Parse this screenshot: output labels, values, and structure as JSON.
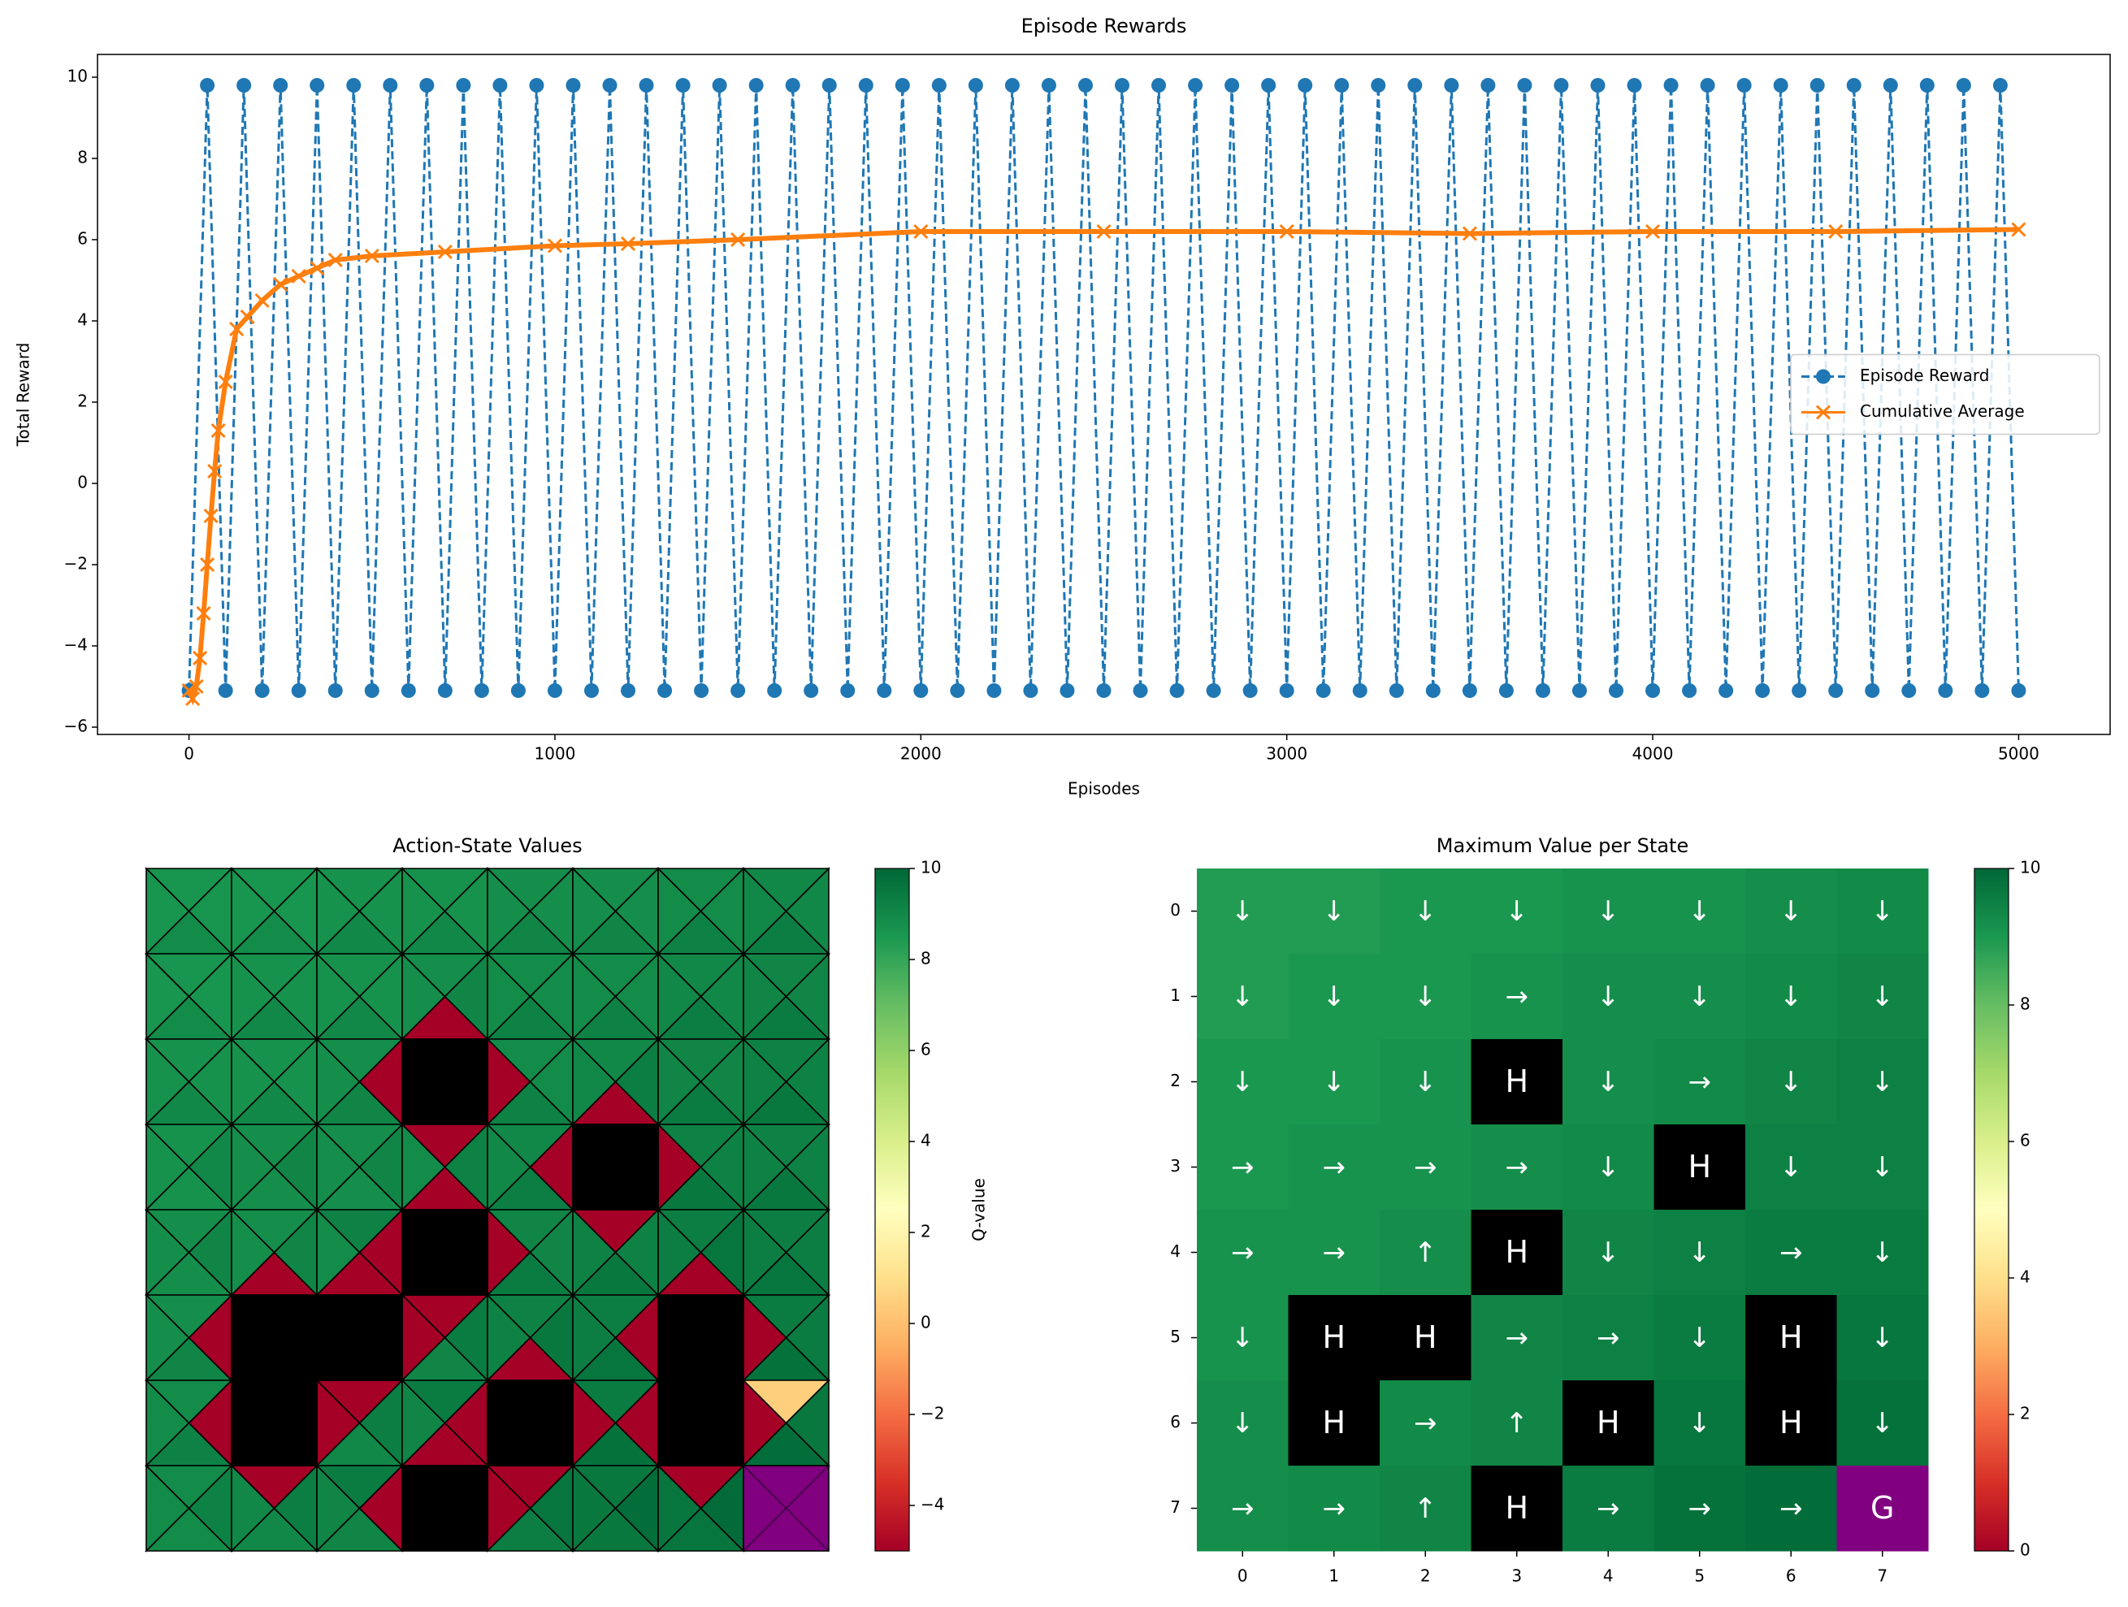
{
  "chart_data": [
    {
      "type": "line",
      "title": "Episode Rewards",
      "xlabel": "Episodes",
      "ylabel": "Total Reward",
      "xlim": [
        -250,
        5250
      ],
      "ylim": [
        -6.18,
        10.56
      ],
      "xticks": [
        0,
        1000,
        2000,
        3000,
        4000,
        5000
      ],
      "yticks": [
        {
          "value": -6,
          "label": "−6"
        },
        {
          "value": -4,
          "label": "−4"
        },
        {
          "value": -2,
          "label": "−2"
        },
        0,
        2,
        4,
        6,
        8,
        10
      ],
      "legend": "center right",
      "series": [
        {
          "name": "Episode Reward",
          "color": "#1f77b4",
          "linestyle": "dashed",
          "marker": "o",
          "x": [
            0,
            50,
            100,
            150,
            200,
            250,
            300,
            350,
            400,
            450,
            500,
            550,
            600,
            650,
            700,
            750,
            800,
            850,
            900,
            950,
            1000,
            1050,
            1100,
            1150,
            1200,
            1250,
            1300,
            1350,
            1400,
            1450,
            1500,
            1550,
            1600,
            1650,
            1700,
            1750,
            1800,
            1850,
            1900,
            1950,
            2000,
            2050,
            2100,
            2150,
            2200,
            2250,
            2300,
            2350,
            2400,
            2450,
            2500,
            2550,
            2600,
            2650,
            2700,
            2750,
            2800,
            2850,
            2900,
            2950,
            3000,
            3050,
            3100,
            3150,
            3200,
            3250,
            3300,
            3350,
            3400,
            3450,
            3500,
            3550,
            3600,
            3650,
            3700,
            3750,
            3800,
            3850,
            3900,
            3950,
            4000,
            4050,
            4100,
            4150,
            4200,
            4250,
            4300,
            4350,
            4400,
            4450,
            4500,
            4550,
            4600,
            4650,
            4700,
            4750,
            4800,
            4850,
            4900,
            4950,
            5000
          ],
          "values": [
            -5.1,
            9.8,
            -5.1,
            9.8,
            -5.1,
            9.8,
            -5.1,
            9.8,
            -5.1,
            9.8,
            -5.1,
            9.8,
            -5.1,
            9.8,
            -5.1,
            9.8,
            -5.1,
            9.8,
            -5.1,
            9.8,
            -5.1,
            9.8,
            -5.1,
            9.8,
            -5.1,
            9.8,
            -5.1,
            9.8,
            -5.1,
            9.8,
            -5.1,
            9.8,
            -5.1,
            9.8,
            -5.1,
            9.8,
            -5.1,
            9.8,
            -5.1,
            9.8,
            -5.1,
            9.8,
            -5.1,
            9.8,
            -5.1,
            9.8,
            -5.1,
            9.8,
            -5.1,
            9.8,
            -5.1,
            9.8,
            -5.1,
            9.8,
            -5.1,
            9.8,
            -5.1,
            9.8,
            -5.1,
            9.8,
            -5.1,
            9.8,
            -5.1,
            9.8,
            -5.1,
            9.8,
            -5.1,
            9.8,
            -5.1,
            9.8,
            -5.1,
            9.8,
            -5.1,
            9.8,
            -5.1,
            9.8,
            -5.1,
            9.8,
            -5.1,
            9.8,
            -5.1,
            9.8,
            -5.1,
            9.8,
            -5.1,
            9.8,
            -5.1,
            9.8,
            -5.1,
            9.8,
            -5.1,
            9.8,
            -5.1,
            9.8,
            -5.1,
            9.8,
            -5.1,
            9.8,
            -5.1,
            9.8,
            -5.1
          ]
        },
        {
          "name": "Cumulative Average",
          "color": "#ff7f0e",
          "linestyle": "solid",
          "marker": "x",
          "x": [
            0,
            10,
            20,
            30,
            40,
            50,
            60,
            70,
            80,
            100,
            130,
            160,
            200,
            250,
            300,
            350,
            400,
            500,
            700,
            1000,
            1200,
            1500,
            2000,
            2500,
            3000,
            3500,
            4000,
            4500,
            5000
          ],
          "values": [
            -5.1,
            -5.3,
            -5.0,
            -4.3,
            -3.2,
            -2.0,
            -0.8,
            0.3,
            1.3,
            2.5,
            3.8,
            4.1,
            4.5,
            4.9,
            5.1,
            5.3,
            5.5,
            5.6,
            5.7,
            5.85,
            5.9,
            6.0,
            6.2,
            6.2,
            6.2,
            6.15,
            6.2,
            6.2,
            6.25
          ]
        }
      ]
    },
    {
      "type": "triangle_heatmap",
      "title": "Action-State Values",
      "colorbar_label": "Q-value",
      "colormap": "RdYlGn",
      "clim": [
        -5,
        10
      ],
      "cticks": [
        {
          "value": -4,
          "label": "−4"
        },
        {
          "value": -2,
          "label": "−2"
        },
        0,
        2,
        4,
        6,
        8,
        10
      ],
      "hole_color": "#000000",
      "goal_color": "#800080",
      "holes": [
        [
          2,
          3
        ],
        [
          3,
          5
        ],
        [
          4,
          3
        ],
        [
          5,
          1
        ],
        [
          5,
          2
        ],
        [
          5,
          6
        ],
        [
          6,
          1
        ],
        [
          6,
          4
        ],
        [
          6,
          6
        ],
        [
          7,
          3
        ]
      ],
      "goal": [
        7,
        7
      ],
      "q_values": [
        [
          [
            8.6,
            8.9,
            8.6,
            8.6
          ],
          [
            8.6,
            8.9,
            8.6,
            8.6
          ],
          [
            8.7,
            9.0,
            8.7,
            8.7
          ],
          [
            8.7,
            9.0,
            8.7,
            8.7
          ],
          [
            8.8,
            9.1,
            8.8,
            8.8
          ],
          [
            8.8,
            9.1,
            8.8,
            8.8
          ],
          [
            8.9,
            9.2,
            8.9,
            8.9
          ],
          [
            9.0,
            9.3,
            9.0,
            9.0
          ]
        ],
        [
          [
            8.6,
            8.9,
            8.6,
            8.6
          ],
          [
            8.7,
            9.0,
            8.7,
            8.7
          ],
          [
            8.7,
            9.0,
            8.7,
            8.7
          ],
          [
            8.8,
            -5,
            9.1,
            8.8
          ],
          [
            8.9,
            9.2,
            8.9,
            8.9
          ],
          [
            8.9,
            9.2,
            8.9,
            8.9
          ],
          [
            9.0,
            9.3,
            9.0,
            9.0
          ],
          [
            9.1,
            9.4,
            9.1,
            9.1
          ]
        ],
        [
          [
            8.7,
            9.0,
            8.7,
            8.7
          ],
          [
            8.7,
            9.0,
            8.7,
            8.7
          ],
          [
            8.8,
            9.1,
            -5,
            8.8
          ],
          null,
          [
            -5,
            9.2,
            8.9,
            8.9
          ],
          [
            9.0,
            -5,
            9.3,
            9.0
          ],
          [
            9.1,
            9.4,
            9.1,
            9.1
          ],
          [
            9.2,
            9.5,
            9.2,
            9.2
          ]
        ],
        [
          [
            8.7,
            8.7,
            9.0,
            8.7
          ],
          [
            8.8,
            8.8,
            9.1,
            8.8
          ],
          [
            8.8,
            8.8,
            9.1,
            8.8
          ],
          [
            8.9,
            -5,
            9.2,
            -5
          ],
          [
            9.0,
            9.3,
            -5,
            9.0
          ],
          null,
          [
            -5,
            9.5,
            9.2,
            9.2
          ],
          [
            9.2,
            9.5,
            9.2,
            9.2
          ]
        ],
        [
          [
            8.8,
            8.8,
            9.1,
            8.8
          ],
          [
            8.8,
            -5,
            9.1,
            8.8
          ],
          [
            8.9,
            -5,
            -5,
            9.2
          ],
          null,
          [
            -5,
            9.4,
            9.1,
            9.1
          ],
          [
            9.2,
            9.5,
            9.2,
            -5
          ],
          [
            9.3,
            -5,
            9.6,
            9.3
          ],
          [
            9.3,
            9.6,
            9.3,
            9.3
          ]
        ],
        [
          [
            8.8,
            9.1,
            -5,
            8.8
          ],
          null,
          null,
          [
            -5,
            9.1,
            9.4,
            -5
          ],
          [
            9.2,
            -5,
            9.5,
            9.2
          ],
          [
            9.3,
            9.6,
            -5,
            9.3
          ],
          null,
          [
            -5,
            9.7,
            9.4,
            9.4
          ]
        ],
        [
          [
            8.9,
            9.2,
            -5,
            8.9
          ],
          null,
          [
            -5,
            9.0,
            9.3,
            -5
          ],
          [
            9.1,
            -5,
            -5,
            9.4
          ],
          null,
          [
            -5,
            9.7,
            -5,
            9.4
          ],
          null,
          [
            -5,
            9.8,
            9.5,
            0.5
          ]
        ],
        [
          [
            8.9,
            8.9,
            9.2,
            8.9
          ],
          [
            9.0,
            9.0,
            9.3,
            -5
          ],
          [
            9.1,
            9.1,
            -5,
            9.4
          ],
          null,
          [
            -5,
            9.3,
            9.6,
            -5
          ],
          [
            9.5,
            9.5,
            9.8,
            9.5
          ],
          [
            9.6,
            9.6,
            9.9,
            -5
          ],
          null
        ]
      ]
    },
    {
      "type": "heatmap",
      "title": "Maximum Value per State",
      "colormap": "RdYlGn",
      "clim": [
        0,
        10
      ],
      "cticks": [
        0,
        2,
        4,
        6,
        8,
        10
      ],
      "xticks": [
        0,
        1,
        2,
        3,
        4,
        5,
        6,
        7
      ],
      "yticks": [
        0,
        1,
        2,
        3,
        4,
        5,
        6,
        7
      ],
      "hole_color": "#000000",
      "goal_color": "#800080",
      "values": [
        [
          8.9,
          8.9,
          9.0,
          9.0,
          9.1,
          9.1,
          9.2,
          9.3
        ],
        [
          8.9,
          9.0,
          9.0,
          9.1,
          9.2,
          9.2,
          9.3,
          9.4
        ],
        [
          9.0,
          9.0,
          9.1,
          null,
          9.2,
          9.3,
          9.4,
          9.5
        ],
        [
          9.0,
          9.1,
          9.1,
          9.2,
          9.3,
          null,
          9.5,
          9.5
        ],
        [
          9.1,
          9.1,
          9.2,
          null,
          9.4,
          9.5,
          9.6,
          9.6
        ],
        [
          9.1,
          null,
          null,
          9.4,
          9.5,
          9.6,
          null,
          9.7
        ],
        [
          9.2,
          null,
          9.3,
          9.4,
          null,
          9.7,
          null,
          9.8
        ],
        [
          9.2,
          9.3,
          9.4,
          null,
          9.6,
          9.8,
          9.9,
          null
        ]
      ],
      "annotations": [
        [
          "↓",
          "↓",
          "↓",
          "↓",
          "↓",
          "↓",
          "↓",
          "↓"
        ],
        [
          "↓",
          "↓",
          "↓",
          "→",
          "↓",
          "↓",
          "↓",
          "↓"
        ],
        [
          "↓",
          "↓",
          "↓",
          "H",
          "↓",
          "→",
          "↓",
          "↓"
        ],
        [
          "→",
          "→",
          "→",
          "→",
          "↓",
          "H",
          "↓",
          "↓"
        ],
        [
          "→",
          "→",
          "↑",
          "H",
          "↓",
          "↓",
          "→",
          "↓"
        ],
        [
          "↓",
          "H",
          "H",
          "→",
          "→",
          "↓",
          "H",
          "↓"
        ],
        [
          "↓",
          "H",
          "→",
          "↑",
          "H",
          "↓",
          "H",
          "↓"
        ],
        [
          "→",
          "→",
          "↑",
          "H",
          "→",
          "→",
          "→",
          "G"
        ]
      ]
    }
  ]
}
